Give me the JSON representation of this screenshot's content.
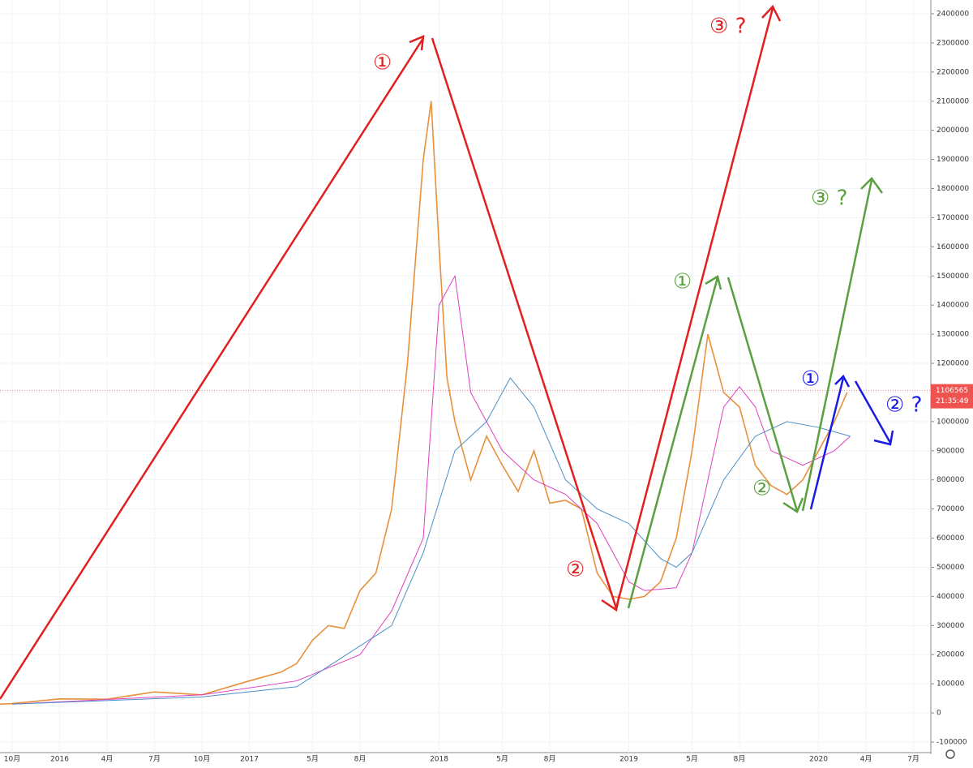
{
  "chart_data": {
    "type": "line",
    "xlim": [
      -0.77,
      58.1
    ],
    "ylim": [
      -100000,
      2400000
    ],
    "xticks": [
      {
        "value": 0,
        "label": "10月"
      },
      {
        "value": 3,
        "label": "2016"
      },
      {
        "value": 6,
        "label": "4月"
      },
      {
        "value": 9,
        "label": "7月"
      },
      {
        "value": 12,
        "label": "10月"
      },
      {
        "value": 15,
        "label": "2017"
      },
      {
        "value": 19,
        "label": "5月"
      },
      {
        "value": 22,
        "label": "8月"
      },
      {
        "value": 27,
        "label": "2018"
      },
      {
        "value": 31,
        "label": "5月"
      },
      {
        "value": 34,
        "label": "8月"
      },
      {
        "value": 39,
        "label": "2019"
      },
      {
        "value": 43,
        "label": "5月"
      },
      {
        "value": 46,
        "label": "8月"
      },
      {
        "value": 51,
        "label": "2020"
      },
      {
        "value": 54,
        "label": "4月"
      },
      {
        "value": 57,
        "label": "7月"
      }
    ],
    "yticks": [
      2400000,
      2300000,
      2200000,
      2100000,
      2000000,
      1900000,
      1800000,
      1700000,
      1600000,
      1500000,
      1400000,
      1300000,
      1200000,
      1100000,
      1000000,
      900000,
      800000,
      700000,
      600000,
      500000,
      400000,
      300000,
      200000,
      100000,
      0,
      -100000
    ],
    "grid": true,
    "last_price": 1106565,
    "last_time": "21:35:49",
    "series": [
      {
        "color": "#e8903a",
        "x": [
          -0.77,
          0,
          3,
          6,
          9,
          12,
          15,
          16,
          17,
          18,
          19,
          20,
          21,
          22,
          23,
          24,
          25,
          26,
          26.5,
          27,
          27.5,
          28,
          29,
          30,
          31,
          32,
          33,
          34,
          35,
          36,
          37,
          38,
          39,
          40,
          41,
          42,
          43,
          44,
          45,
          46,
          47,
          48,
          49,
          50,
          51,
          52,
          52.8
        ],
        "values": [
          30000,
          32000,
          48000,
          47000,
          72000,
          62000,
          110000,
          125000,
          140000,
          170000,
          250000,
          300000,
          290000,
          420000,
          480000,
          700000,
          1200000,
          1900000,
          2100000,
          1600000,
          1150000,
          1000000,
          800000,
          950000,
          850000,
          760000,
          900000,
          720000,
          730000,
          700000,
          480000,
          400000,
          390000,
          400000,
          450000,
          600000,
          900000,
          1300000,
          1100000,
          1050000,
          850000,
          780000,
          750000,
          800000,
          900000,
          1000000,
          1100000
        ]
      },
      {
        "color": "#e040c0",
        "x": [
          0,
          12,
          18,
          22,
          24,
          26,
          27,
          28,
          29,
          31,
          33,
          35,
          37,
          39,
          40,
          42,
          43,
          45,
          46,
          47,
          48,
          50,
          52,
          53
        ],
        "values": [
          30000,
          62000,
          110000,
          200000,
          350000,
          600000,
          1400000,
          1500000,
          1100000,
          900000,
          800000,
          750000,
          650000,
          450000,
          420000,
          430000,
          550000,
          1050000,
          1120000,
          1050000,
          900000,
          850000,
          900000,
          950000
        ]
      },
      {
        "color": "#4a90c8",
        "x": [
          0,
          12,
          18,
          24,
          26,
          28,
          30,
          31.5,
          33,
          35,
          37,
          39,
          41,
          42,
          43,
          45,
          47,
          49,
          51,
          53
        ],
        "values": [
          30000,
          55000,
          90000,
          300000,
          550000,
          900000,
          1000000,
          1150000,
          1050000,
          800000,
          700000,
          650000,
          530000,
          500000,
          550000,
          800000,
          950000,
          1000000,
          980000,
          950000
        ]
      }
    ],
    "annotations": {
      "red1": "①",
      "red2": "②",
      "red3": "③ ?",
      "green1": "①",
      "green2": "②",
      "green3": "③ ?",
      "blue1": "①",
      "blue2": "② ?"
    }
  }
}
